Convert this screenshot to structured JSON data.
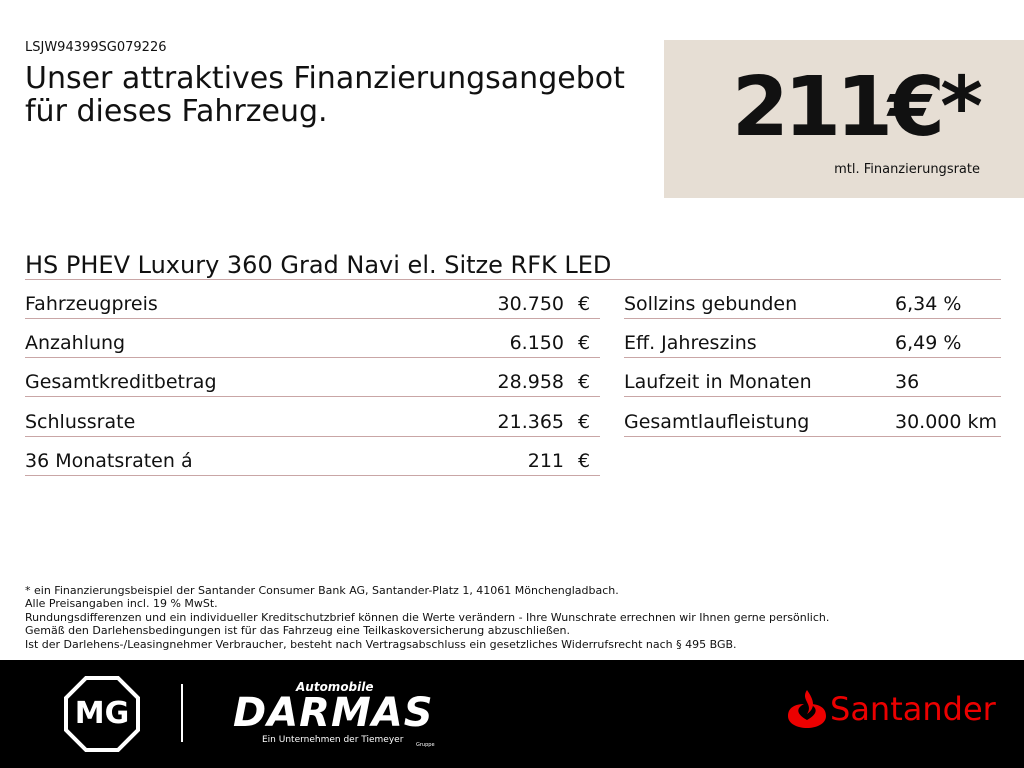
{
  "vin": "LSJW94399SG079226",
  "headline": [
    "Unser attraktives Finanzierungsangebot",
    "für dieses Fahrzeug."
  ],
  "price_box": {
    "price": "211€*",
    "caption": "mtl. Finanzierungsrate"
  },
  "model": "HS PHEV Luxury 360 Grad Navi el. Sitze RFK LED",
  "left_table": {
    "rows": [
      [
        "Fahrzeugpreis",
        "30.750",
        "€"
      ],
      [
        "Anzahlung",
        "6.150",
        "€"
      ],
      [
        "Gesamtkreditbetrag",
        "28.958",
        "€"
      ],
      [
        "Schlussrate",
        "21.365",
        "€"
      ],
      [
        "36 Monatsraten á",
        "211",
        "€"
      ]
    ]
  },
  "right_table": {
    "rows": [
      [
        "Sollzins gebunden",
        "6,34 %"
      ],
      [
        "Eff. Jahreszins",
        "6,49 %"
      ],
      [
        "Laufzeit in Monaten",
        "36"
      ],
      [
        "Gesamtlaufleistung",
        "30.000 km"
      ]
    ]
  },
  "footnotes": [
    "* ein Finanzierungsbeispiel der Santander Consumer Bank AG, Santander-Platz 1, 41061 Mönchengladbach.",
    "Alle Preisangaben incl. 19 % MwSt.",
    "Rundungsdifferenzen und ein individueller Kreditschutzbrief können die Werte verändern - Ihre Wunschrate errechnen wir Ihnen gerne persönlich.",
    "Gemäß den Darlehensbedingungen ist für das Fahrzeug eine Teilkaskoversicherung abzuschließen.",
    "Ist der Darlehens-/Leasingnehmer Verbraucher, besteht nach Vertragsabschluss ein gesetzliches Widerrufsrecht nach § 495 BGB."
  ],
  "footer": {
    "mg": "MG",
    "dealer_top": "Automobile",
    "dealer": "DARMAS",
    "dealer_sub": "Ein Unternehmen der Tiemeyer",
    "dealer_group": "Gruppe",
    "bank": "Santander"
  }
}
